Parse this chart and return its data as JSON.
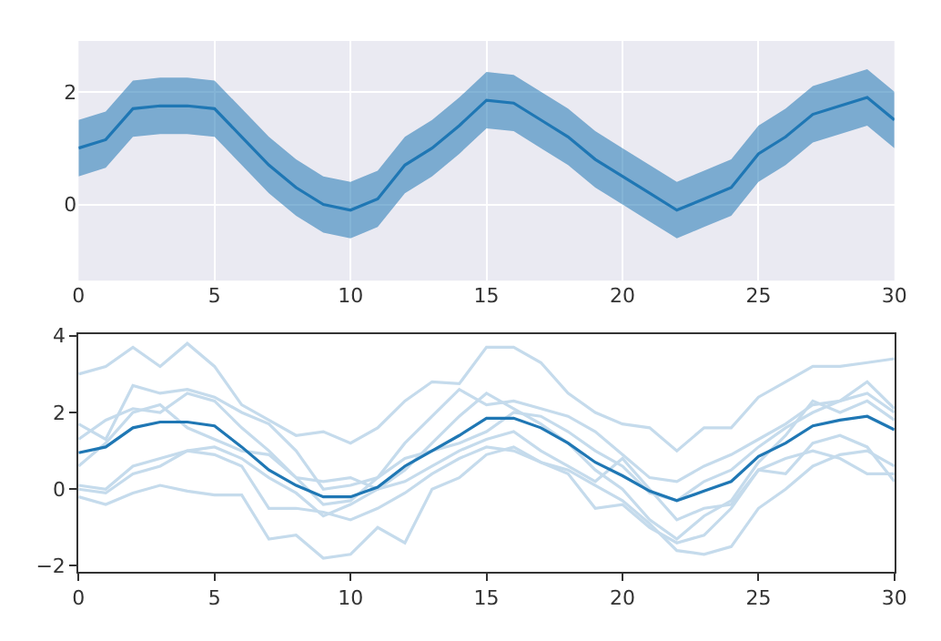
{
  "chart_data": [
    {
      "type": "line",
      "xlim": [
        0,
        30
      ],
      "xticks": [
        0,
        5,
        10,
        15,
        20,
        25,
        30
      ],
      "ylim": [
        -1.35,
        2.9
      ],
      "yticks": [
        0,
        2
      ],
      "grid": true,
      "x": [
        0,
        1,
        2,
        3,
        4,
        5,
        6,
        7,
        8,
        9,
        10,
        11,
        12,
        13,
        14,
        15,
        16,
        17,
        18,
        19,
        20,
        21,
        22,
        23,
        24,
        25,
        26,
        27,
        28,
        29,
        30
      ],
      "series": [
        {
          "color": "#1f77b4",
          "values": [
            1.0,
            1.15,
            1.7,
            1.75,
            1.75,
            1.7,
            1.2,
            0.7,
            0.3,
            0.0,
            -0.1,
            0.1,
            0.7,
            1.0,
            1.4,
            1.85,
            1.8,
            1.5,
            1.2,
            0.8,
            0.5,
            0.2,
            -0.1,
            0.1,
            0.3,
            0.9,
            1.2,
            1.6,
            1.75,
            1.9,
            1.5
          ],
          "lower": [
            0.5,
            0.65,
            1.2,
            1.25,
            1.25,
            1.2,
            0.7,
            0.2,
            -0.2,
            -0.5,
            -0.6,
            -0.4,
            0.2,
            0.5,
            0.9,
            1.35,
            1.3,
            1.0,
            0.7,
            0.3,
            0.0,
            -0.3,
            -0.6,
            -0.4,
            -0.2,
            0.4,
            0.7,
            1.1,
            1.25,
            1.4,
            1.0
          ],
          "upper": [
            1.5,
            1.65,
            2.2,
            2.25,
            2.25,
            2.2,
            1.7,
            1.2,
            0.8,
            0.5,
            0.4,
            0.6,
            1.2,
            1.5,
            1.9,
            2.35,
            2.3,
            2.0,
            1.7,
            1.3,
            1.0,
            0.7,
            0.4,
            0.6,
            0.8,
            1.4,
            1.7,
            2.1,
            2.25,
            2.4,
            2.0
          ]
        }
      ]
    },
    {
      "type": "line",
      "xlim": [
        0,
        30
      ],
      "xticks": [
        0,
        5,
        10,
        15,
        20,
        25,
        30
      ],
      "ylim": [
        -2.15,
        4.05
      ],
      "yticks": [
        -2,
        0,
        2,
        4
      ],
      "grid": false,
      "x": [
        0,
        1,
        2,
        3,
        4,
        5,
        6,
        7,
        8,
        9,
        10,
        11,
        12,
        13,
        14,
        15,
        16,
        17,
        18,
        19,
        20,
        21,
        22,
        23,
        24,
        25,
        26,
        27,
        28,
        29,
        30
      ],
      "series": [
        {
          "color": "#c5dbec",
          "values": [
            3.0,
            3.2,
            3.7,
            3.2,
            3.8,
            3.2,
            2.2,
            1.8,
            1.4,
            1.5,
            1.2,
            1.6,
            2.3,
            2.8,
            2.75,
            3.7,
            3.7,
            3.3,
            2.5,
            2.0,
            1.7,
            1.6,
            1.0,
            1.6,
            1.6,
            2.4,
            2.8,
            3.2,
            3.2,
            3.3,
            3.4
          ]
        },
        {
          "color": "#c5dbec",
          "values": [
            -0.2,
            -0.4,
            -0.1,
            0.1,
            -0.05,
            -0.15,
            -0.15,
            -1.3,
            -1.2,
            -1.8,
            -1.7,
            -1.0,
            -1.4,
            0.0,
            0.3,
            0.9,
            1.1,
            0.7,
            0.4,
            -0.5,
            -0.4,
            -1.0,
            -1.4,
            -1.2,
            -0.5,
            0.5,
            0.4,
            1.2,
            1.4,
            1.1,
            0.2
          ]
        },
        {
          "color": "#c5dbec",
          "values": [
            1.7,
            1.3,
            2.7,
            2.5,
            2.6,
            2.4,
            2.0,
            1.7,
            1.0,
            0.0,
            0.1,
            0.3,
            1.2,
            1.9,
            2.6,
            2.2,
            2.3,
            2.1,
            1.9,
            1.5,
            0.9,
            0.3,
            0.2,
            0.6,
            0.9,
            1.3,
            1.7,
            2.2,
            2.3,
            2.8,
            2.1
          ]
        },
        {
          "color": "#c5dbec",
          "values": [
            0.1,
            0.0,
            0.6,
            0.8,
            1.0,
            0.9,
            0.6,
            -0.5,
            -0.5,
            -0.6,
            -0.8,
            -0.5,
            -0.1,
            0.4,
            0.8,
            1.1,
            1.0,
            0.7,
            0.5,
            0.1,
            -0.3,
            -0.9,
            -1.6,
            -1.7,
            -1.5,
            -0.5,
            0.0,
            0.6,
            0.9,
            1.0,
            0.6
          ]
        },
        {
          "color": "#c5dbec",
          "values": [
            0.6,
            1.2,
            2.0,
            2.2,
            1.6,
            1.3,
            1.0,
            0.9,
            0.3,
            -0.4,
            -0.3,
            0.3,
            0.8,
            1.0,
            1.2,
            1.5,
            2.0,
            1.9,
            1.5,
            1.0,
            0.6,
            -0.1,
            -0.3,
            0.2,
            0.5,
            1.1,
            1.6,
            2.0,
            2.3,
            2.5,
            2.0
          ]
        },
        {
          "color": "#c5dbec",
          "values": [
            1.3,
            1.8,
            2.1,
            2.0,
            2.5,
            2.3,
            1.6,
            1.0,
            0.3,
            0.2,
            0.3,
            0.0,
            0.5,
            1.2,
            1.9,
            2.5,
            2.1,
            1.7,
            1.2,
            0.5,
            0.0,
            -0.8,
            -1.3,
            -0.7,
            -0.3,
            0.7,
            1.4,
            2.3,
            2.0,
            2.3,
            1.8
          ]
        },
        {
          "color": "#c5dbec",
          "values": [
            0.0,
            -0.1,
            0.4,
            0.6,
            1.0,
            1.1,
            0.8,
            0.3,
            -0.1,
            -0.7,
            -0.4,
            0.0,
            0.2,
            0.6,
            1.0,
            1.3,
            1.5,
            1.0,
            0.6,
            0.2,
            0.8,
            0.0,
            -0.8,
            -0.5,
            -0.4,
            0.5,
            0.8,
            1.0,
            0.8,
            0.4,
            0.4
          ]
        },
        {
          "color": "#1f77b4",
          "values": [
            0.95,
            1.1,
            1.6,
            1.75,
            1.75,
            1.65,
            1.1,
            0.5,
            0.1,
            -0.2,
            -0.2,
            0.05,
            0.6,
            1.0,
            1.4,
            1.85,
            1.85,
            1.6,
            1.2,
            0.7,
            0.35,
            -0.05,
            -0.3,
            -0.05,
            0.2,
            0.85,
            1.2,
            1.65,
            1.8,
            1.9,
            1.55
          ]
        }
      ]
    }
  ]
}
